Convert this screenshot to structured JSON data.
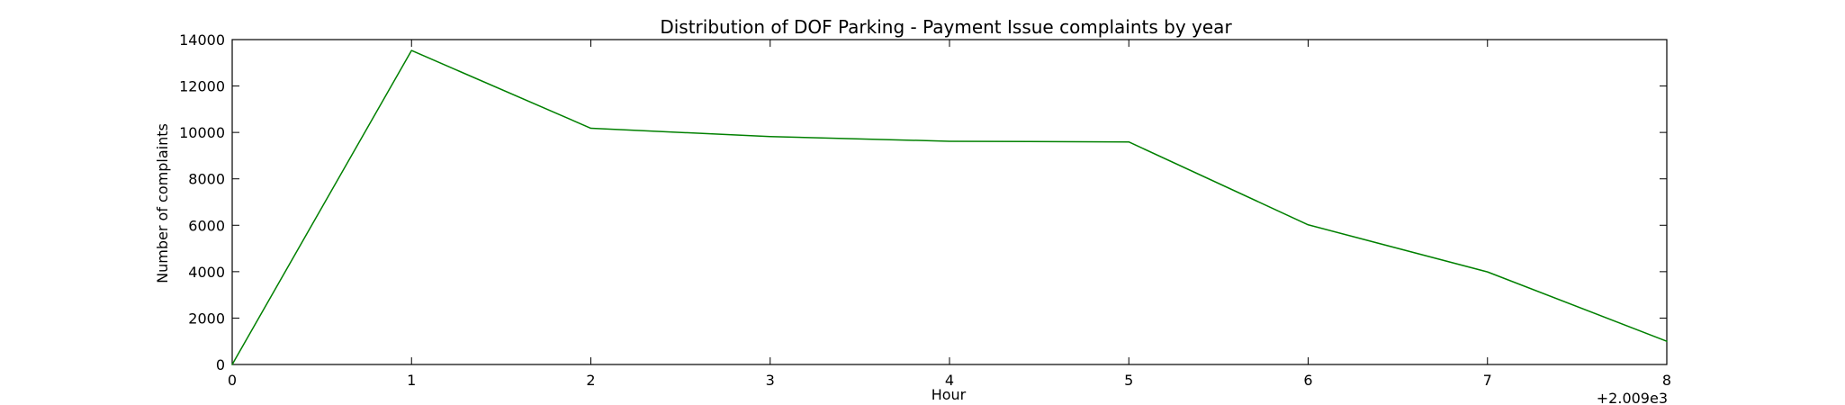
{
  "chart_data": {
    "type": "line",
    "title": "Distribution of  DOF Parking - Payment Issue complaints by year",
    "xlabel": "Hour",
    "ylabel": "Number of complaints",
    "x_offset_label": "+2.009e3",
    "xlim": [
      0,
      8
    ],
    "ylim": [
      0,
      14000
    ],
    "x_ticks": [
      0,
      1,
      2,
      3,
      4,
      5,
      6,
      7,
      8
    ],
    "y_ticks": [
      0,
      2000,
      4000,
      6000,
      8000,
      10000,
      12000,
      14000
    ],
    "x_tick_labels": [
      "0",
      "1",
      "2",
      "3",
      "4",
      "5",
      "6",
      "7",
      "8"
    ],
    "y_tick_labels": [
      "0",
      "2000",
      "4000",
      "6000",
      "8000",
      "10000",
      "12000",
      "14000"
    ],
    "grid": false,
    "series": [
      {
        "color": "#008000",
        "x": [
          0,
          1,
          2,
          3,
          4,
          5,
          6,
          7,
          8
        ],
        "y": [
          0,
          13530,
          10180,
          9820,
          9620,
          9590,
          6020,
          3990,
          1000
        ]
      }
    ]
  }
}
